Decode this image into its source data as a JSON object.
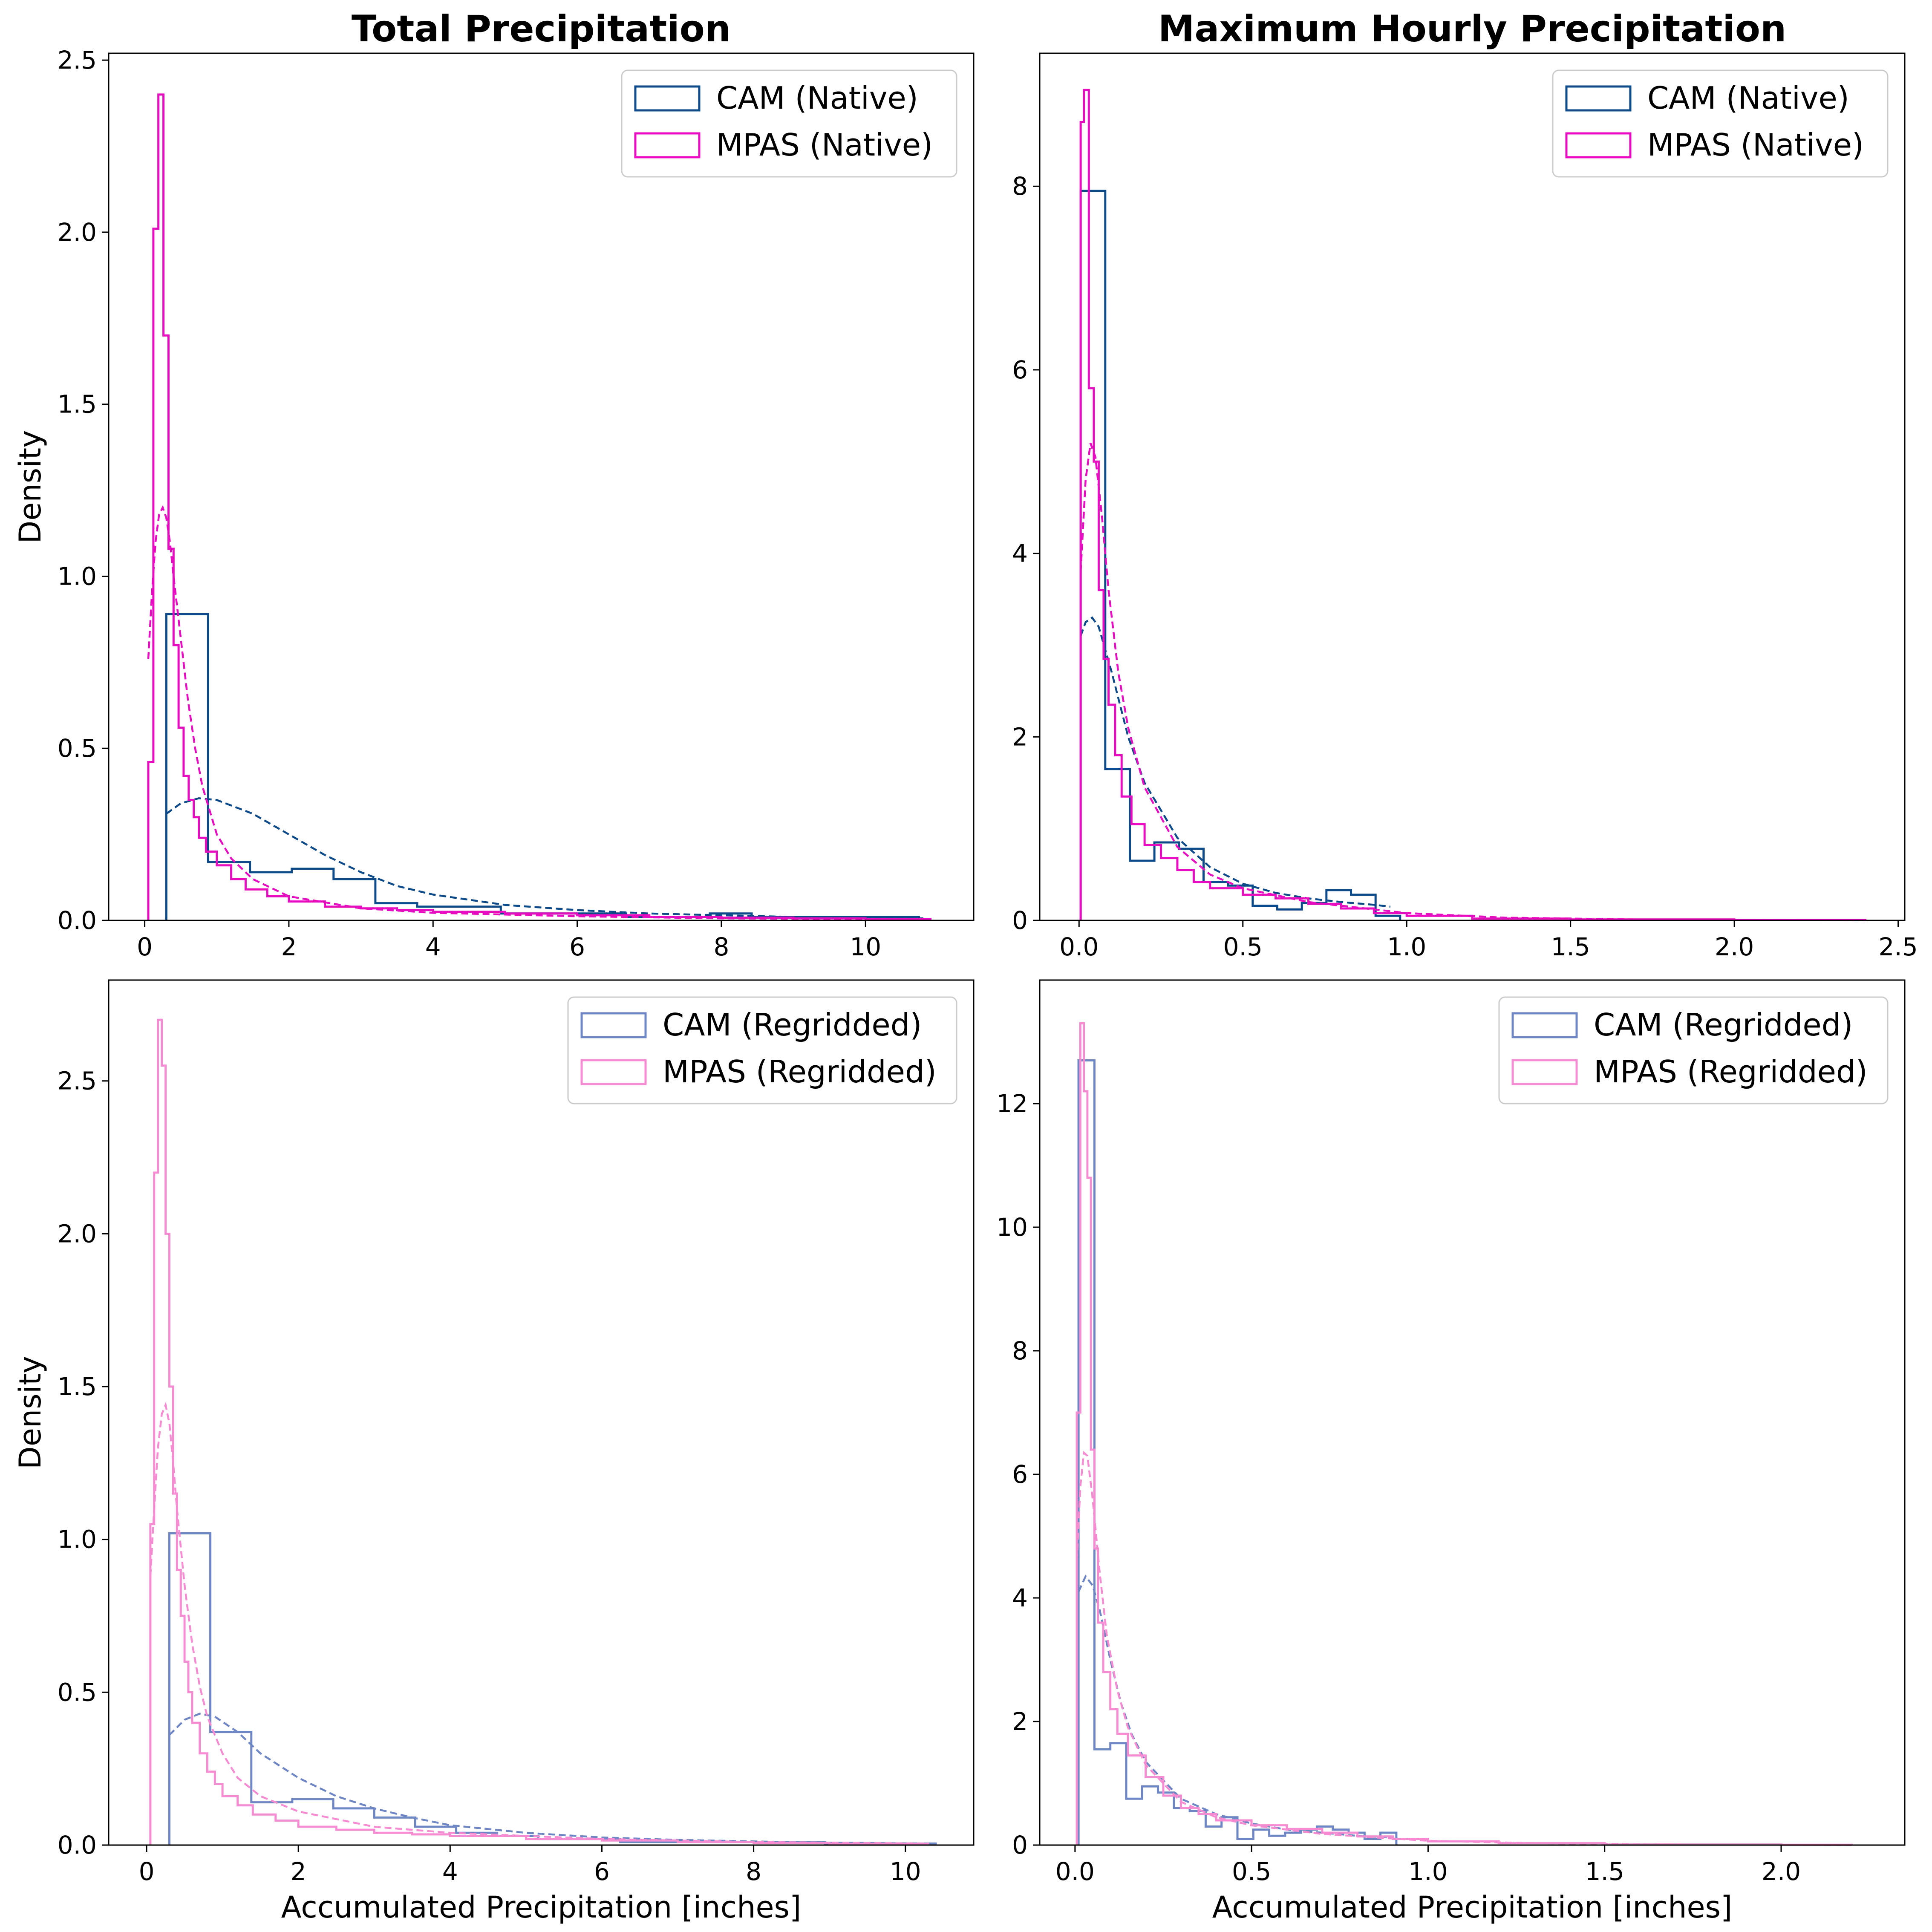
{
  "colors": {
    "cam_native": "#0d4a8a",
    "mpas_native": "#e60cc0",
    "cam_regridded": "#6f86c4",
    "mpas_regridded": "#f58bd1"
  },
  "chart_data": [
    {
      "type": "histogram",
      "title": "Total Precipitation",
      "xlabel": "",
      "ylabel": "Density",
      "xlim": [
        -0.5,
        11.5
      ],
      "ylim": [
        0,
        2.52
      ],
      "xticks": [
        0,
        2,
        4,
        6,
        8,
        10
      ],
      "xtick_labels": [
        "0",
        "2",
        "4",
        "6",
        "8",
        "10"
      ],
      "yticks": [
        0,
        0.5,
        1.0,
        1.5,
        2.0,
        2.5
      ],
      "ytick_labels": [
        "0.0",
        "0.5",
        "1.0",
        "1.5",
        "2.0",
        "2.5"
      ],
      "legend_position": "top-right",
      "series": [
        {
          "name": "CAM (Native)",
          "color_key": "cam_native",
          "edges": [
            0.3,
            0.88,
            1.46,
            2.04,
            2.62,
            3.2,
            3.78,
            4.36,
            4.94,
            5.52,
            6.1,
            6.68,
            7.26,
            7.84,
            8.42,
            9.0,
            9.58,
            10.16,
            10.74
          ],
          "densities": [
            0.89,
            0.17,
            0.14,
            0.15,
            0.12,
            0.05,
            0.04,
            0.04,
            0.02,
            0.02,
            0.02,
            0.01,
            0.01,
            0.02,
            0.01,
            0.01,
            0.01,
            0.01
          ],
          "fit_x": [
            0.3,
            0.5,
            0.75,
            1.0,
            1.5,
            2.0,
            2.5,
            3.0,
            3.5,
            4.0,
            5.0,
            6.0,
            7.0,
            8.0,
            9.0,
            10.0,
            10.8
          ],
          "fit_y": [
            0.31,
            0.34,
            0.355,
            0.35,
            0.31,
            0.25,
            0.19,
            0.14,
            0.1,
            0.075,
            0.045,
            0.03,
            0.02,
            0.015,
            0.01,
            0.008,
            0.006
          ]
        },
        {
          "name": "MPAS (Native)",
          "color_key": "mpas_native",
          "edges": [
            0.05,
            0.12,
            0.19,
            0.26,
            0.33,
            0.4,
            0.47,
            0.54,
            0.61,
            0.68,
            0.75,
            0.85,
            1.0,
            1.2,
            1.4,
            1.7,
            2.0,
            2.5,
            3.0,
            3.5,
            4.0,
            5.0,
            6.0,
            7.0,
            8.0,
            9.0,
            10.0,
            10.9
          ],
          "densities": [
            0.46,
            2.01,
            2.4,
            1.7,
            1.08,
            0.8,
            0.56,
            0.42,
            0.35,
            0.3,
            0.24,
            0.2,
            0.16,
            0.12,
            0.09,
            0.07,
            0.055,
            0.04,
            0.035,
            0.03,
            0.025,
            0.02,
            0.015,
            0.01,
            0.008,
            0.006,
            0.004
          ],
          "fit_x": [
            0.05,
            0.1,
            0.15,
            0.2,
            0.25,
            0.3,
            0.35,
            0.4,
            0.5,
            0.6,
            0.7,
            0.8,
            1.0,
            1.2,
            1.5,
            2.0,
            3.0,
            4.0,
            6.0,
            8.0,
            10.8
          ],
          "fit_y": [
            0.76,
            0.95,
            1.1,
            1.18,
            1.2,
            1.17,
            1.1,
            1.0,
            0.82,
            0.64,
            0.5,
            0.39,
            0.25,
            0.18,
            0.12,
            0.07,
            0.035,
            0.022,
            0.012,
            0.006,
            0.003
          ]
        }
      ]
    },
    {
      "type": "histogram",
      "title": "Maximum Hourly Precipitation",
      "xlabel": "",
      "ylabel": "",
      "xlim": [
        -0.12,
        2.52
      ],
      "ylim": [
        0,
        9.45
      ],
      "xticks": [
        0,
        0.5,
        1.0,
        1.5,
        2.0,
        2.5
      ],
      "xtick_labels": [
        "0.0",
        "0.5",
        "1.0",
        "1.5",
        "2.0",
        "2.5"
      ],
      "yticks": [
        0,
        2,
        4,
        6,
        8
      ],
      "ytick_labels": [
        "0",
        "2",
        "4",
        "6",
        "8"
      ],
      "legend_position": "top-right",
      "series": [
        {
          "name": "CAM (Native)",
          "color_key": "cam_native",
          "edges": [
            0.005,
            0.08,
            0.155,
            0.23,
            0.305,
            0.38,
            0.455,
            0.53,
            0.605,
            0.68,
            0.755,
            0.83,
            0.905,
            0.98
          ],
          "densities": [
            7.95,
            1.65,
            0.65,
            0.85,
            0.78,
            0.42,
            0.38,
            0.16,
            0.12,
            0.19,
            0.33,
            0.28,
            0.05
          ],
          "fit_x": [
            0.005,
            0.02,
            0.04,
            0.06,
            0.08,
            0.1,
            0.15,
            0.2,
            0.3,
            0.4,
            0.5,
            0.6,
            0.7,
            0.8,
            0.9,
            0.95
          ],
          "fit_y": [
            3.1,
            3.25,
            3.3,
            3.2,
            2.95,
            2.7,
            2.0,
            1.5,
            0.9,
            0.58,
            0.4,
            0.3,
            0.24,
            0.2,
            0.17,
            0.15
          ]
        },
        {
          "name": "MPAS (Native)",
          "color_key": "mpas_native",
          "edges": [
            0.005,
            0.015,
            0.03,
            0.045,
            0.06,
            0.075,
            0.09,
            0.11,
            0.13,
            0.16,
            0.2,
            0.25,
            0.3,
            0.35,
            0.4,
            0.5,
            0.6,
            0.7,
            0.8,
            0.9,
            1.0,
            1.2,
            1.5,
            2.0,
            2.4
          ],
          "densities": [
            8.7,
            9.05,
            5.8,
            5.0,
            3.6,
            2.85,
            2.35,
            1.8,
            1.35,
            1.05,
            0.82,
            0.68,
            0.55,
            0.42,
            0.35,
            0.28,
            0.24,
            0.18,
            0.13,
            0.08,
            0.05,
            0.02,
            0.01,
            0.005
          ],
          "fit_x": [
            0.005,
            0.02,
            0.035,
            0.05,
            0.07,
            0.09,
            0.12,
            0.15,
            0.2,
            0.3,
            0.4,
            0.5,
            0.7,
            1.0,
            1.3,
            1.7,
            2.1,
            2.4
          ],
          "fit_y": [
            3.8,
            4.8,
            5.2,
            5.05,
            4.4,
            3.6,
            2.7,
            2.1,
            1.45,
            0.8,
            0.5,
            0.35,
            0.2,
            0.08,
            0.03,
            0.01,
            0.005,
            0.002
          ]
        }
      ]
    },
    {
      "type": "histogram",
      "title": "",
      "xlabel": "Accumulated Precipitation [inches]",
      "ylabel": "Density",
      "xlim": [
        -0.5,
        10.9
      ],
      "ylim": [
        0,
        2.83
      ],
      "xticks": [
        0,
        2,
        4,
        6,
        8,
        10
      ],
      "xtick_labels": [
        "0",
        "2",
        "4",
        "6",
        "8",
        "10"
      ],
      "yticks": [
        0,
        0.5,
        1.0,
        1.5,
        2.0,
        2.5
      ],
      "ytick_labels": [
        "0.0",
        "0.5",
        "1.0",
        "1.5",
        "2.0",
        "2.5"
      ],
      "legend_position": "top-right",
      "series": [
        {
          "name": "CAM (Regridded)",
          "color_key": "cam_regridded",
          "edges": [
            0.3,
            0.84,
            1.38,
            1.92,
            2.46,
            3.0,
            3.54,
            4.08,
            4.62,
            5.16,
            5.7,
            6.24,
            6.78,
            7.32,
            7.86,
            8.4,
            8.94,
            9.48,
            10.02,
            10.4
          ],
          "densities": [
            1.02,
            0.37,
            0.14,
            0.15,
            0.12,
            0.09,
            0.06,
            0.04,
            0.03,
            0.02,
            0.02,
            0.01,
            0.01,
            0.01,
            0.01,
            0.01,
            0.005,
            0.005,
            0.005
          ],
          "fit_x": [
            0.3,
            0.5,
            0.7,
            0.9,
            1.2,
            1.5,
            2.0,
            2.5,
            3.0,
            3.5,
            4.0,
            5.0,
            6.0,
            7.0,
            8.0,
            9.0,
            10.3
          ],
          "fit_y": [
            0.36,
            0.41,
            0.43,
            0.42,
            0.37,
            0.3,
            0.22,
            0.16,
            0.12,
            0.09,
            0.065,
            0.04,
            0.025,
            0.017,
            0.012,
            0.008,
            0.005
          ]
        },
        {
          "name": "MPAS (Regridded)",
          "color_key": "mpas_regridded",
          "edges": [
            0.05,
            0.1,
            0.15,
            0.2,
            0.25,
            0.3,
            0.35,
            0.4,
            0.45,
            0.5,
            0.55,
            0.6,
            0.7,
            0.8,
            0.9,
            1.0,
            1.2,
            1.4,
            1.7,
            2.0,
            2.5,
            3.0,
            3.5,
            4.0,
            5.0,
            6.0,
            7.0,
            8.0,
            9.0,
            10.3
          ],
          "densities": [
            1.05,
            2.2,
            2.7,
            2.55,
            2.0,
            1.5,
            1.15,
            0.9,
            0.75,
            0.6,
            0.5,
            0.4,
            0.3,
            0.24,
            0.2,
            0.16,
            0.13,
            0.1,
            0.08,
            0.06,
            0.05,
            0.04,
            0.035,
            0.03,
            0.02,
            0.015,
            0.01,
            0.007,
            0.004
          ],
          "fit_x": [
            0.05,
            0.1,
            0.15,
            0.2,
            0.25,
            0.3,
            0.35,
            0.4,
            0.5,
            0.6,
            0.7,
            0.8,
            1.0,
            1.2,
            1.5,
            2.0,
            3.0,
            4.0,
            6.0,
            8.0,
            10.3
          ],
          "fit_y": [
            0.88,
            1.1,
            1.3,
            1.41,
            1.44,
            1.38,
            1.25,
            1.1,
            0.85,
            0.66,
            0.52,
            0.42,
            0.3,
            0.22,
            0.16,
            0.11,
            0.06,
            0.04,
            0.02,
            0.01,
            0.005
          ]
        }
      ]
    },
    {
      "type": "histogram",
      "title": "",
      "xlabel": "Accumulated Precipitation [inches]",
      "ylabel": "",
      "xlim": [
        -0.1,
        2.35
      ],
      "ylim": [
        0,
        14.0
      ],
      "xticks": [
        0,
        0.5,
        1.0,
        1.5,
        2.0
      ],
      "xtick_labels": [
        "0.0",
        "0.5",
        "1.0",
        "1.5",
        "2.0"
      ],
      "yticks": [
        0,
        2,
        4,
        6,
        8,
        10,
        12
      ],
      "ytick_labels": [
        "0",
        "2",
        "4",
        "6",
        "8",
        "10",
        "12"
      ],
      "legend_position": "top-right",
      "series": [
        {
          "name": "CAM (Regridded)",
          "color_key": "cam_regridded",
          "edges": [
            0.01,
            0.055,
            0.1,
            0.145,
            0.19,
            0.235,
            0.28,
            0.325,
            0.37,
            0.415,
            0.46,
            0.505,
            0.55,
            0.595,
            0.64,
            0.685,
            0.73,
            0.775,
            0.82,
            0.865,
            0.91
          ],
          "densities": [
            12.7,
            1.55,
            1.65,
            0.75,
            0.95,
            0.85,
            0.6,
            0.55,
            0.3,
            0.45,
            0.1,
            0.25,
            0.15,
            0.2,
            0.25,
            0.3,
            0.25,
            0.2,
            0.1,
            0.2
          ],
          "fit_x": [
            0.01,
            0.03,
            0.05,
            0.07,
            0.1,
            0.13,
            0.16,
            0.2,
            0.3,
            0.4,
            0.5,
            0.6,
            0.7,
            0.8,
            0.9
          ],
          "fit_y": [
            4.1,
            4.35,
            4.2,
            3.8,
            3.0,
            2.3,
            1.8,
            1.35,
            0.75,
            0.5,
            0.35,
            0.25,
            0.2,
            0.15,
            0.12
          ]
        },
        {
          "name": "MPAS (Regridded)",
          "color_key": "mpas_regridded",
          "edges": [
            0.005,
            0.015,
            0.025,
            0.035,
            0.045,
            0.055,
            0.065,
            0.08,
            0.1,
            0.12,
            0.15,
            0.2,
            0.25,
            0.3,
            0.35,
            0.4,
            0.5,
            0.6,
            0.7,
            0.8,
            0.9,
            1.0,
            1.2,
            1.5,
            2.0,
            2.2
          ],
          "densities": [
            7.0,
            13.3,
            12.2,
            10.8,
            6.4,
            4.8,
            3.6,
            2.8,
            2.2,
            1.8,
            1.45,
            1.1,
            0.8,
            0.6,
            0.5,
            0.4,
            0.32,
            0.26,
            0.2,
            0.14,
            0.1,
            0.06,
            0.03,
            0.01,
            0.005
          ],
          "fit_x": [
            0.005,
            0.015,
            0.025,
            0.035,
            0.05,
            0.07,
            0.09,
            0.12,
            0.15,
            0.2,
            0.3,
            0.4,
            0.5,
            0.7,
            1.0,
            1.3,
            1.7,
            2.2
          ],
          "fit_y": [
            4.6,
            5.8,
            6.35,
            6.3,
            5.6,
            4.4,
            3.4,
            2.5,
            1.9,
            1.3,
            0.7,
            0.45,
            0.32,
            0.18,
            0.07,
            0.03,
            0.01,
            0.003
          ]
        }
      ]
    }
  ]
}
